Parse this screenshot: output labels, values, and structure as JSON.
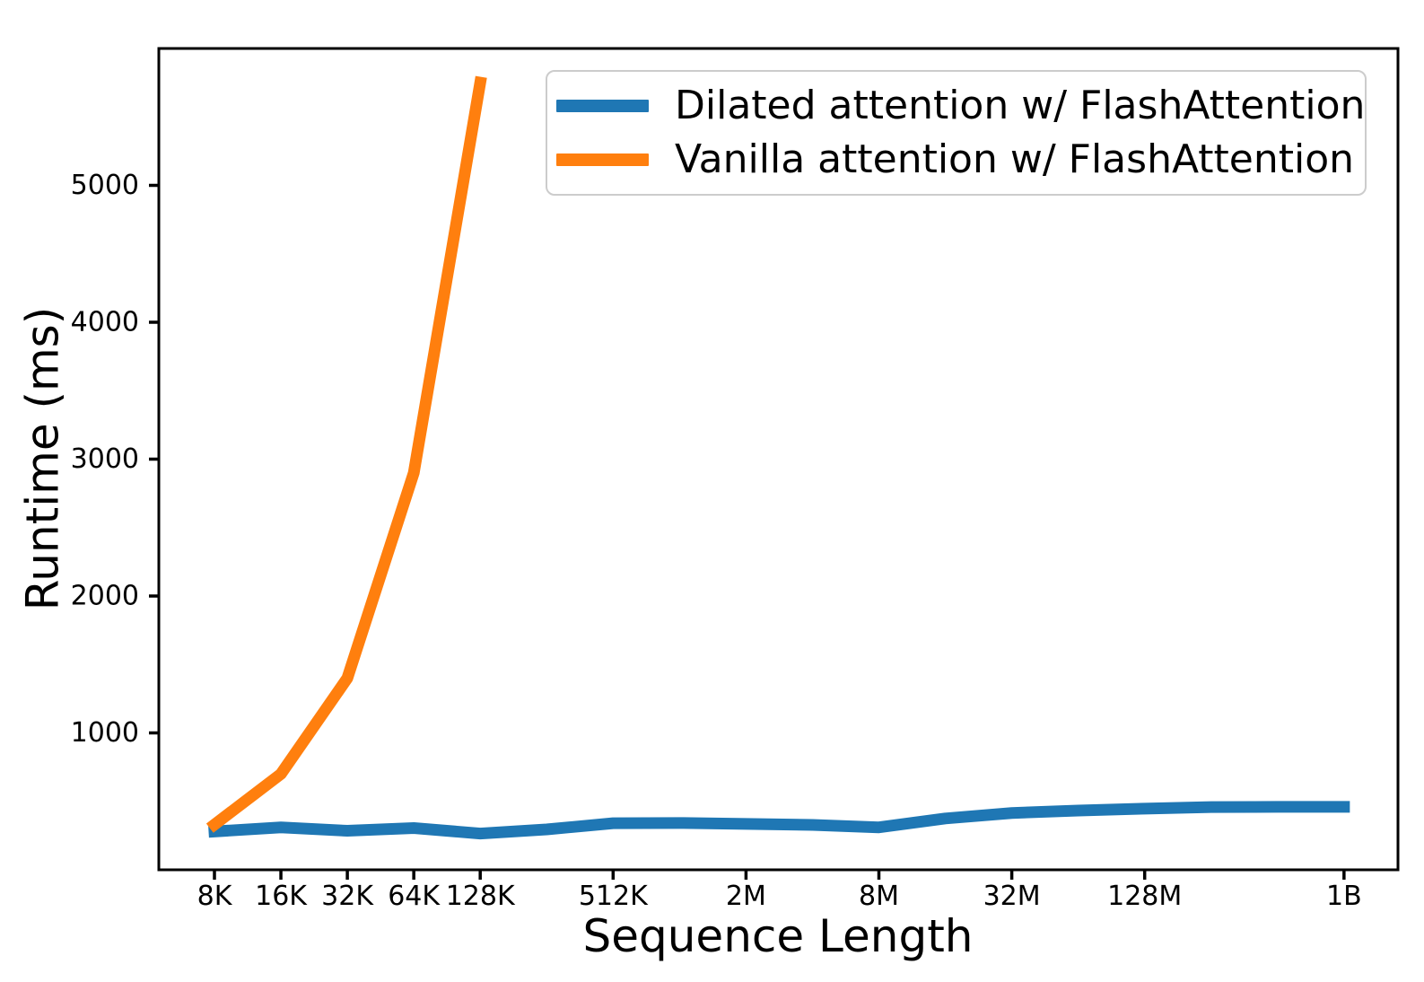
{
  "chart_data": {
    "type": "line",
    "title": "",
    "xlabel": "Sequence Length",
    "ylabel": "Runtime (ms)",
    "x_scale": "log2",
    "grid": false,
    "legend_position": "upper-right-inside",
    "ylim": [
      0,
      6000
    ],
    "y_ticks": [
      1000,
      2000,
      3000,
      4000,
      5000
    ],
    "x_tick_labels": [
      "8K",
      "16K",
      "32K",
      "64K",
      "128K",
      "512K",
      "2M",
      "8M",
      "32M",
      "128M",
      "1B"
    ],
    "x_tick_tokens": [
      8192,
      16384,
      32768,
      65536,
      131072,
      524288,
      2097152,
      8388608,
      33554432,
      134217728,
      1073741824
    ],
    "series": [
      {
        "name": "Dilated attention w/ FlashAttention",
        "color": "#1f77b4",
        "x_labels": [
          "8K",
          "16K",
          "32K",
          "64K",
          "128K",
          "256K",
          "512K",
          "1M",
          "2M",
          "4M",
          "8M",
          "16M",
          "32M",
          "64M",
          "128M",
          "256M",
          "512M",
          "1B"
        ],
        "x_tokens": [
          8192,
          16384,
          32768,
          65536,
          131072,
          262144,
          524288,
          1048576,
          2097152,
          4194304,
          8388608,
          16777216,
          33554432,
          67108864,
          134217728,
          268435456,
          536870912,
          1073741824
        ],
        "values": [
          280,
          310,
          285,
          305,
          265,
          295,
          340,
          342,
          335,
          328,
          310,
          375,
          415,
          433,
          447,
          458,
          460,
          460
        ]
      },
      {
        "name": "Vanilla attention w/ FlashAttention",
        "color": "#ff7f0e",
        "x_labels": [
          "8K",
          "16K",
          "32K",
          "64K",
          "128K"
        ],
        "x_tokens": [
          8192,
          16384,
          32768,
          65536,
          131072
        ],
        "values": [
          330,
          700,
          1400,
          2900,
          5750
        ]
      }
    ]
  }
}
